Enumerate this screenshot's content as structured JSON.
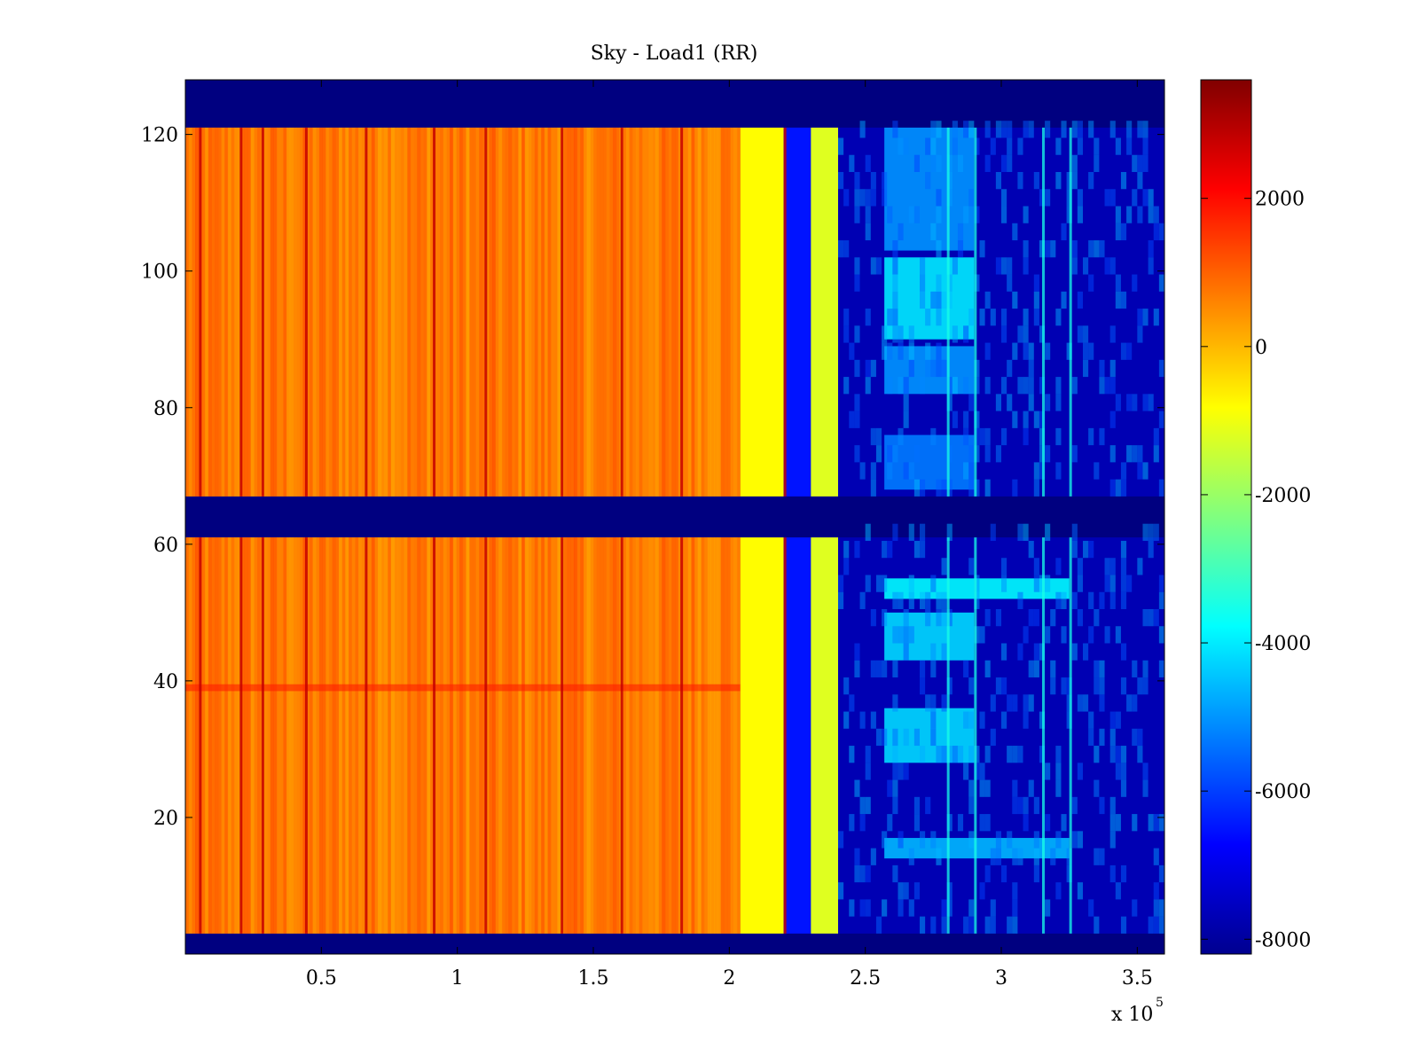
{
  "chart_data": {
    "type": "heatmap",
    "title": "Sky - Load1 (RR)",
    "xlabel": "",
    "ylabel": "",
    "x_multiplier_base": "x 10",
    "x_multiplier_exp": "5",
    "xlim": [
      0,
      3.6
    ],
    "ylim": [
      0,
      128
    ],
    "x_ticks": [
      0.5,
      1,
      1.5,
      2,
      2.5,
      3,
      3.5
    ],
    "x_tick_labels": [
      "0.5",
      "1",
      "1.5",
      "2",
      "2.5",
      "3",
      "3.5"
    ],
    "y_ticks": [
      20,
      40,
      60,
      80,
      100,
      120
    ],
    "y_tick_labels": [
      "20",
      "40",
      "60",
      "80",
      "100",
      "120"
    ],
    "colorbar": {
      "colormap": "jet",
      "range": [
        -8200,
        3600
      ],
      "ticks": [
        2000,
        0,
        -2000,
        -4000,
        -6000,
        -8000
      ],
      "tick_labels": [
        "2000",
        "0",
        "-2000",
        "-4000",
        "-6000",
        "-8000"
      ]
    },
    "masked_rows": [
      [
        121,
        128
      ],
      [
        61,
        67
      ],
      [
        0,
        3
      ]
    ],
    "regions": [
      {
        "x": [
          0,
          2.04
        ],
        "value": 700,
        "description": "warm orange band"
      },
      {
        "x": [
          2.04,
          2.2
        ],
        "value": -800,
        "description": "yellow band"
      },
      {
        "x": [
          2.2,
          2.3
        ],
        "value": -6500,
        "description": "blue band"
      },
      {
        "x": [
          2.3,
          2.4
        ],
        "value": -1200,
        "description": "yellow stripe"
      },
      {
        "x": [
          2.4,
          3.6
        ],
        "value": -7600,
        "description": "dark blue with cyan patches"
      }
    ],
    "bright_patches": [
      {
        "x": [
          2.57,
          2.9
        ],
        "y": [
          90,
          102
        ],
        "value": -4000
      },
      {
        "x": [
          2.57,
          2.9
        ],
        "y": [
          103,
          121
        ],
        "value": -5000
      },
      {
        "x": [
          2.57,
          2.9
        ],
        "y": [
          82,
          89
        ],
        "value": -5000
      },
      {
        "x": [
          2.57,
          2.9
        ],
        "y": [
          68,
          76
        ],
        "value": -5300
      },
      {
        "x": [
          2.57,
          2.9
        ],
        "y": [
          43,
          50
        ],
        "value": -4200
      },
      {
        "x": [
          2.57,
          2.9
        ],
        "y": [
          28,
          36
        ],
        "value": -4200
      },
      {
        "x": [
          2.57,
          3.25
        ],
        "y": [
          52,
          55
        ],
        "value": -3800
      },
      {
        "x": [
          2.57,
          3.25
        ],
        "y": [
          14,
          17
        ],
        "value": -4600
      }
    ],
    "dark_columns_x": [
      0.05,
      0.2,
      0.28,
      0.44,
      0.66,
      0.91,
      1.1,
      1.38,
      1.6,
      1.82,
      2.2
    ],
    "bright_columns_x": [
      2.8,
      2.9,
      3.15,
      3.25
    ]
  }
}
